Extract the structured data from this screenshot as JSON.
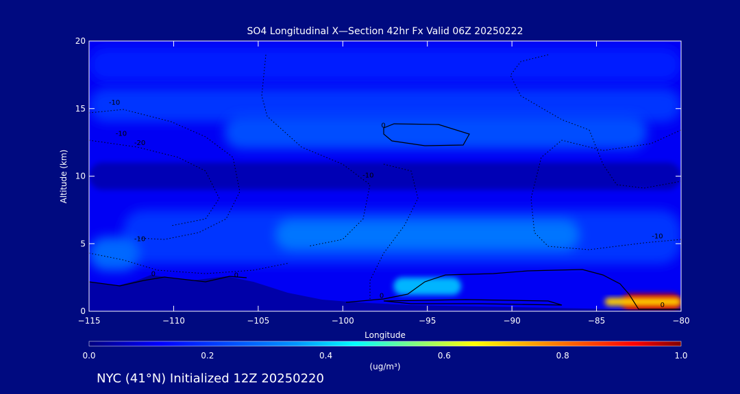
{
  "chart_data": {
    "type": "heatmap",
    "title": "SO4 Longitudinal X—Section 42hr  Fx Valid 06Z 20250222",
    "xlabel": "Longitude",
    "ylabel": "Altitude (km)",
    "xlim": [
      -115,
      -80
    ],
    "ylim": [
      0,
      20
    ],
    "xticks": [
      -115,
      -110,
      -105,
      -100,
      -95,
      -90,
      -85,
      -80
    ],
    "yticks": [
      0,
      5,
      10,
      15,
      20
    ],
    "colorbar": {
      "label": "(ug/m³)",
      "range": [
        0.0,
        1.0
      ],
      "ticks": [
        "0.0",
        "0.2",
        "0.4",
        "0.6",
        "0.8",
        "1.0"
      ]
    },
    "contour_labels": [
      {
        "text": "-10",
        "x": -113.5,
        "y": 15.3
      },
      {
        "text": "-10",
        "x": -113.1,
        "y": 13.0
      },
      {
        "text": "-20",
        "x": -112.0,
        "y": 12.3
      },
      {
        "text": "-10",
        "x": -98.5,
        "y": 9.9
      },
      {
        "text": "-10",
        "x": -112.0,
        "y": 5.2
      },
      {
        "text": "-10",
        "x": -81.4,
        "y": 5.4
      },
      {
        "text": "0",
        "x": -97.6,
        "y": 13.6
      },
      {
        "text": "0",
        "x": -111.2,
        "y": 2.6
      },
      {
        "text": "0",
        "x": -106.3,
        "y": 2.5
      },
      {
        "text": "0",
        "x": -97.7,
        "y": 1.0
      },
      {
        "text": "0",
        "x": -81.1,
        "y": 0.3
      }
    ],
    "regions": [
      {
        "level": 0.11,
        "x0": -115,
        "x1": -80,
        "y0": 0,
        "y1": 20
      },
      {
        "level": 0.16,
        "x0": -115,
        "x1": -80,
        "y0": 17,
        "y1": 19.5
      },
      {
        "level": 0.2,
        "x0": -115,
        "x1": -80,
        "y0": 14,
        "y1": 16.5
      },
      {
        "level": 0.24,
        "x0": -107,
        "x1": -82,
        "y0": 12,
        "y1": 14.5
      },
      {
        "level": 0.05,
        "x0": -115,
        "x1": -80,
        "y0": 9,
        "y1": 11
      },
      {
        "level": 0.2,
        "x0": -113,
        "x1": -80,
        "y0": 3.5,
        "y1": 7.5
      },
      {
        "level": 0.3,
        "x0": -104,
        "x1": -86,
        "y0": 4.5,
        "y1": 6.8
      },
      {
        "level": 0.28,
        "x0": -115,
        "x1": -112,
        "y0": 3,
        "y1": 5.5
      },
      {
        "level": 0.38,
        "x0": -97,
        "x1": -93,
        "y0": 1.2,
        "y1": 2.5
      },
      {
        "level": 0.95,
        "x0": -83.5,
        "x1": -80,
        "y0": 0,
        "y1": 1.3
      },
      {
        "level": 0.7,
        "x0": -84.5,
        "x1": -80,
        "y0": 0.4,
        "y1": 1.0
      }
    ]
  },
  "footer": {
    "text": "NYC (41°N) Initialized 12Z 20250220"
  }
}
